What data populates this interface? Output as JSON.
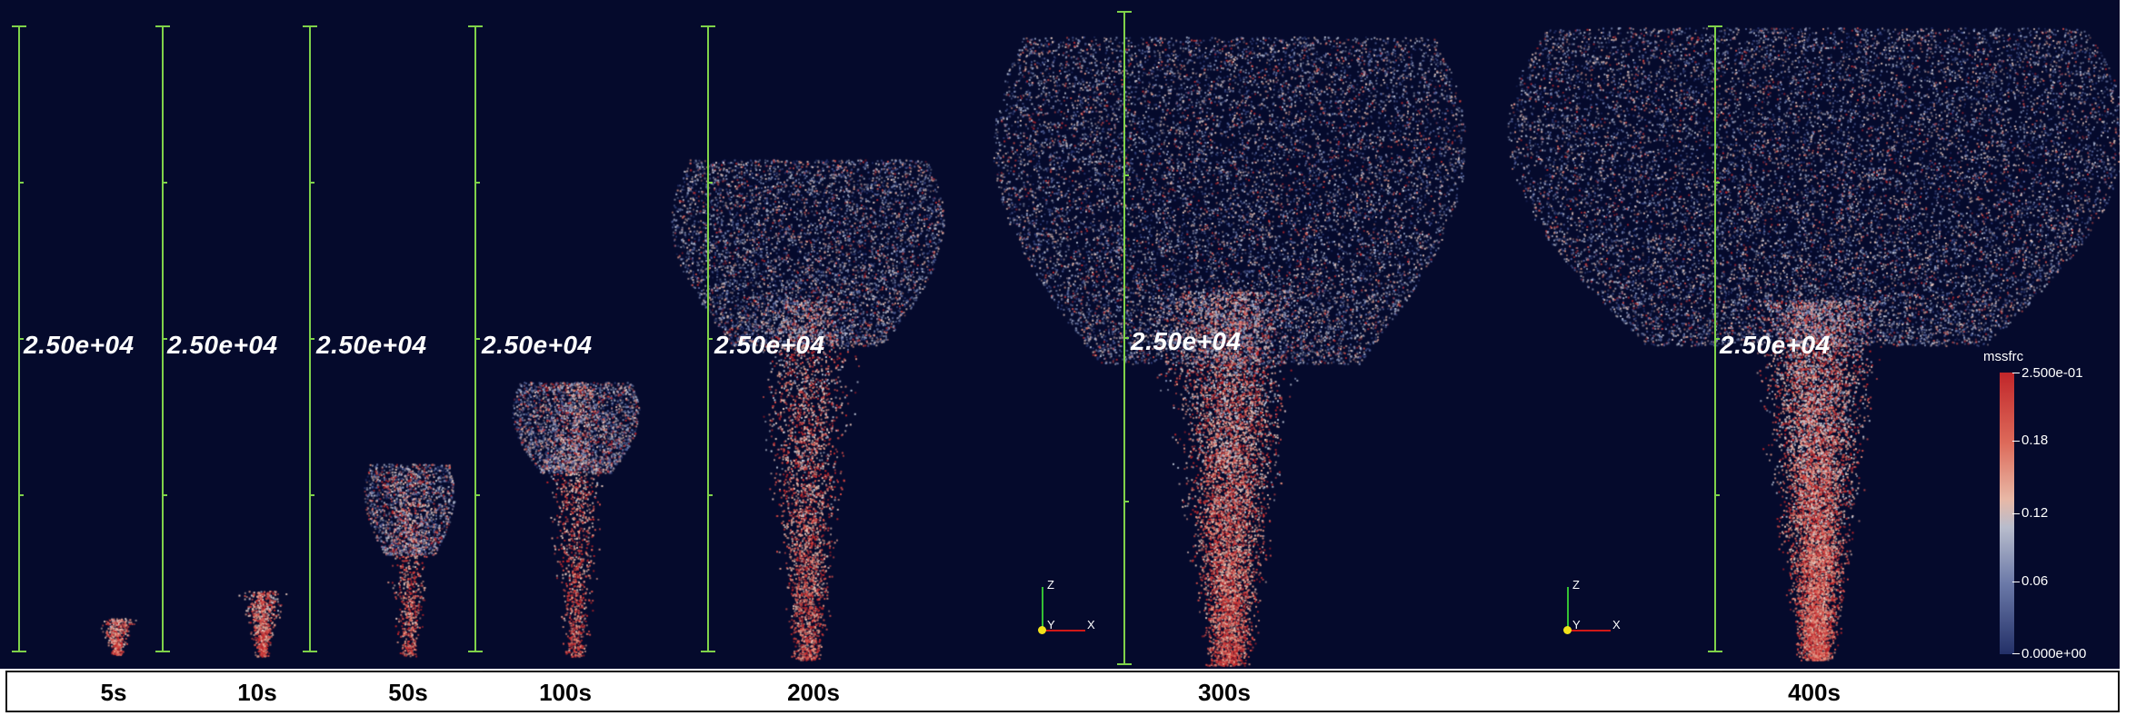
{
  "height_label": "2.50e+04",
  "panels": [
    {
      "time": "5s"
    },
    {
      "time": "10s"
    },
    {
      "time": "50s"
    },
    {
      "time": "100s"
    },
    {
      "time": "200s"
    },
    {
      "time": "300s"
    },
    {
      "time": "400s"
    }
  ],
  "axes_triad": {
    "z": "Z",
    "y": "Y",
    "x": "X"
  },
  "colorbar": {
    "variable": "mssfrc",
    "max_label": "2.500e-01",
    "tick_labels": [
      "0.18",
      "0.12",
      "0.06"
    ],
    "min_label": "0.000e+00",
    "colors": {
      "high": "#c1262a",
      "mid": "#b8bccc",
      "low": "#233068"
    }
  },
  "colors": {
    "background": "#050a2c",
    "ruler": "#7fd24a"
  }
}
